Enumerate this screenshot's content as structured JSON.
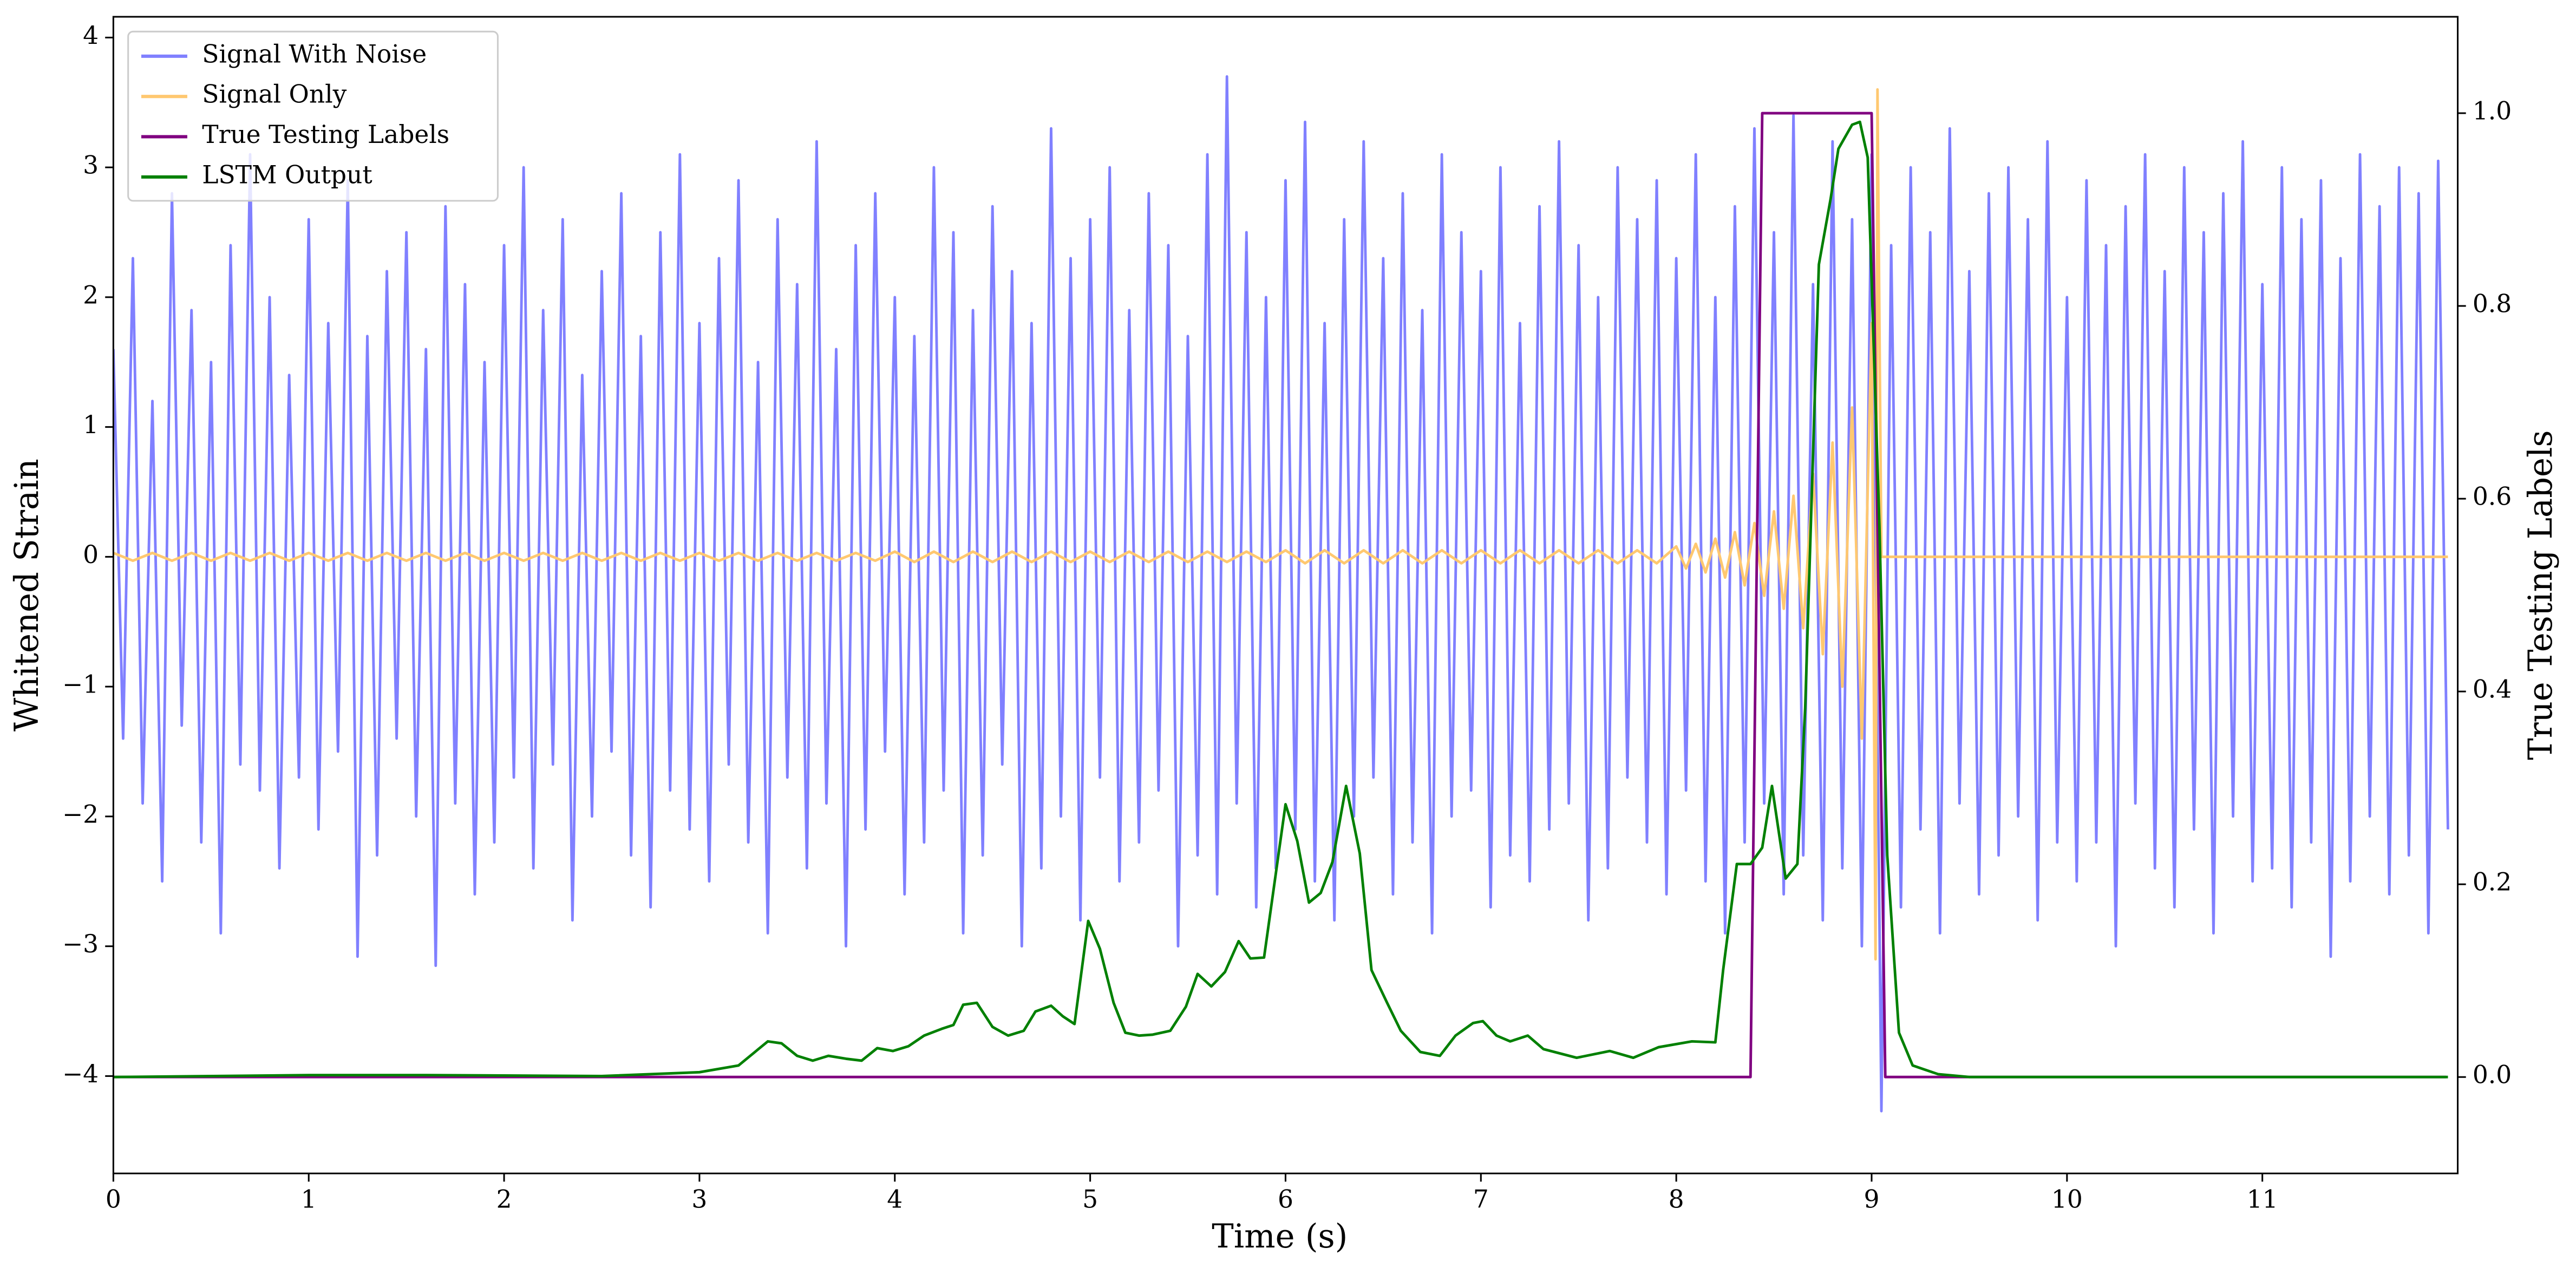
{
  "chart_data": {
    "type": "line",
    "xlabel": "Time (s)",
    "ylabel": "Whitened Strain",
    "y2label": "True Testing Labels",
    "legend": "upper left",
    "xlim": [
      0,
      12
    ],
    "ylim": [
      -4.75,
      4.16
    ],
    "y2lim": [
      -0.1,
      1.1
    ],
    "xticks": [
      0,
      1,
      2,
      3,
      4,
      5,
      6,
      7,
      8,
      9,
      10,
      11
    ],
    "yticks": [
      {
        "value": -4,
        "label": "−4"
      },
      {
        "value": -3,
        "label": "−3"
      },
      {
        "value": -2,
        "label": "−2"
      },
      {
        "value": -1,
        "label": "−1"
      },
      0,
      1,
      2,
      3,
      4
    ],
    "y2ticks": [
      {
        "value": 0,
        "label": "0.0"
      },
      0.2,
      0.4,
      0.6,
      0.8,
      {
        "value": 1,
        "label": "1.0"
      }
    ],
    "series": [
      {
        "name": "Signal With Noise",
        "color": "#8080ff",
        "axis": "y",
        "x": [
          0,
          0.05,
          0.1,
          0.15,
          0.2,
          0.25,
          0.3,
          0.35,
          0.4,
          0.45,
          0.5,
          0.55,
          0.6,
          0.65,
          0.7,
          0.75,
          0.8,
          0.85,
          0.9,
          0.95,
          1,
          1.05,
          1.1,
          1.15,
          1.2,
          1.25,
          1.3,
          1.35,
          1.4,
          1.45,
          1.5,
          1.55,
          1.6,
          1.65,
          1.7,
          1.75,
          1.8,
          1.85,
          1.9,
          1.95,
          2,
          2.05,
          2.1,
          2.15,
          2.2,
          2.25,
          2.3,
          2.35,
          2.4,
          2.45,
          2.5,
          2.55,
          2.6,
          2.65,
          2.7,
          2.75,
          2.8,
          2.85,
          2.9,
          2.95,
          3,
          3.05,
          3.1,
          3.15,
          3.2,
          3.25,
          3.3,
          3.35,
          3.4,
          3.45,
          3.5,
          3.55,
          3.6,
          3.65,
          3.7,
          3.75,
          3.8,
          3.85,
          3.9,
          3.95,
          4,
          4.05,
          4.1,
          4.15,
          4.2,
          4.25,
          4.3,
          4.35,
          4.4,
          4.45,
          4.5,
          4.55,
          4.6,
          4.65,
          4.7,
          4.75,
          4.8,
          4.85,
          4.9,
          4.95,
          5,
          5.05,
          5.1,
          5.15,
          5.2,
          5.25,
          5.3,
          5.35,
          5.4,
          5.45,
          5.5,
          5.55,
          5.6,
          5.65,
          5.7,
          5.75,
          5.8,
          5.85,
          5.9,
          5.95,
          6,
          6.05,
          6.1,
          6.15,
          6.2,
          6.25,
          6.3,
          6.35,
          6.4,
          6.45,
          6.5,
          6.55,
          6.6,
          6.65,
          6.7,
          6.75,
          6.8,
          6.85,
          6.9,
          6.95,
          7,
          7.05,
          7.1,
          7.15,
          7.2,
          7.25,
          7.3,
          7.35,
          7.4,
          7.45,
          7.5,
          7.55,
          7.6,
          7.65,
          7.7,
          7.75,
          7.8,
          7.85,
          7.9,
          7.95,
          8,
          8.05,
          8.1,
          8.15,
          8.2,
          8.25,
          8.3,
          8.35,
          8.4,
          8.45,
          8.5,
          8.55,
          8.6,
          8.65,
          8.7,
          8.75,
          8.8,
          8.85,
          8.9,
          8.95,
          9,
          9.05,
          9.1,
          9.15,
          9.2,
          9.25,
          9.3,
          9.35,
          9.4,
          9.45,
          9.5,
          9.55,
          9.6,
          9.65,
          9.7,
          9.75,
          9.8,
          9.85,
          9.9,
          9.95,
          10,
          10.05,
          10.1,
          10.15,
          10.2,
          10.25,
          10.3,
          10.35,
          10.4,
          10.45,
          10.5,
          10.55,
          10.6,
          10.65,
          10.7,
          10.75,
          10.8,
          10.85,
          10.9,
          10.95,
          11,
          11.05,
          11.1,
          11.15,
          11.2,
          11.25,
          11.3,
          11.35,
          11.4,
          11.45,
          11.5,
          11.55,
          11.6,
          11.65,
          11.7,
          11.75,
          11.8,
          11.85,
          11.9,
          11.95
        ],
        "values": [
          1.6,
          -1.4,
          2.3,
          -1.9,
          1.2,
          -2.5,
          2.8,
          -1.3,
          1.9,
          -2.2,
          1.5,
          -2.9,
          2.4,
          -1.6,
          3.1,
          -1.8,
          2.0,
          -2.4,
          1.4,
          -1.7,
          2.6,
          -2.1,
          1.8,
          -1.5,
          2.9,
          -3.08,
          1.7,
          -2.3,
          2.2,
          -1.4,
          2.5,
          -2.0,
          1.6,
          -3.15,
          2.7,
          -1.9,
          2.1,
          -2.6,
          1.5,
          -2.2,
          2.4,
          -1.7,
          3.0,
          -2.4,
          1.9,
          -1.6,
          2.6,
          -2.8,
          1.4,
          -2.0,
          2.2,
          -1.5,
          2.8,
          -2.3,
          1.7,
          -2.7,
          2.5,
          -1.8,
          3.1,
          -2.1,
          1.8,
          -2.5,
          2.3,
          -1.6,
          2.9,
          -2.2,
          1.5,
          -2.9,
          2.6,
          -1.7,
          2.1,
          -2.4,
          3.2,
          -1.9,
          1.6,
          -3.0,
          2.4,
          -2.1,
          2.8,
          -1.5,
          2.0,
          -2.6,
          1.7,
          -2.2,
          3.0,
          -1.8,
          2.5,
          -2.9,
          1.9,
          -2.3,
          2.7,
          -1.6,
          2.2,
          -3.0,
          1.8,
          -2.4,
          3.3,
          -2.0,
          2.3,
          -2.8,
          2.6,
          -1.7,
          3.0,
          -2.5,
          1.9,
          -2.2,
          2.8,
          -1.8,
          2.4,
          -3.0,
          1.7,
          -2.3,
          3.1,
          -2.6,
          3.7,
          -1.9,
          2.5,
          -2.7,
          2.0,
          -2.4,
          2.9,
          -2.1,
          3.35,
          -2.5,
          1.8,
          -2.8,
          2.6,
          -2.0,
          3.2,
          -1.7,
          2.3,
          -2.6,
          2.8,
          -2.2,
          1.9,
          -2.9,
          3.1,
          -2.0,
          2.5,
          -1.8,
          2.2,
          -2.7,
          3.0,
          -2.3,
          1.8,
          -2.5,
          2.7,
          -2.1,
          3.2,
          -1.9,
          2.4,
          -2.8,
          2.0,
          -2.4,
          3.0,
          -1.7,
          2.6,
          -2.2,
          2.9,
          -2.6,
          2.3,
          -1.8,
          3.1,
          -2.5,
          2.0,
          -2.9,
          2.7,
          -2.2,
          3.3,
          -1.9,
          2.5,
          -2.6,
          3.4,
          -2.3,
          2.1,
          -2.8,
          3.2,
          -2.4,
          2.6,
          -3.0,
          3.1,
          -4.27,
          2.4,
          -2.7,
          3.0,
          -2.1,
          2.5,
          -2.9,
          3.3,
          -1.9,
          2.2,
          -2.6,
          2.8,
          -2.3,
          3.0,
          -2.0,
          2.6,
          -2.8,
          3.2,
          -2.2,
          2.0,
          -2.5,
          2.9,
          -2.2,
          2.4,
          -3.0,
          2.7,
          -1.9,
          3.1,
          -2.4,
          2.2,
          -2.7,
          3.0,
          -2.1,
          2.5,
          -2.9,
          2.8,
          -2.0,
          3.2,
          -2.5,
          2.1,
          -2.4,
          3.0,
          -2.7,
          2.6,
          -2.2,
          2.9,
          -3.08,
          2.3,
          -2.5,
          3.1,
          -2.0,
          2.7,
          -2.6,
          3.0,
          -2.3,
          2.8,
          -2.9,
          3.05,
          -2.1
        ]
      },
      {
        "name": "Signal Only",
        "color": "#ffc870",
        "axis": "y",
        "x": [
          0,
          0.1,
          0.2,
          0.3,
          0.4,
          0.5,
          0.6,
          0.7,
          0.8,
          0.9,
          1,
          1.1,
          1.2,
          1.3,
          1.4,
          1.5,
          1.6,
          1.7,
          1.8,
          1.9,
          2,
          2.1,
          2.2,
          2.3,
          2.4,
          2.5,
          2.6,
          2.7,
          2.8,
          2.9,
          3,
          3.1,
          3.2,
          3.3,
          3.4,
          3.5,
          3.6,
          3.7,
          3.8,
          3.9,
          4,
          4.1,
          4.2,
          4.3,
          4.4,
          4.5,
          4.6,
          4.7,
          4.8,
          4.9,
          5,
          5.1,
          5.2,
          5.3,
          5.4,
          5.5,
          5.6,
          5.7,
          5.8,
          5.9,
          6,
          6.1,
          6.2,
          6.3,
          6.4,
          6.5,
          6.6,
          6.7,
          6.8,
          6.9,
          7,
          7.1,
          7.2,
          7.3,
          7.4,
          7.5,
          7.6,
          7.7,
          7.8,
          7.9,
          8,
          8.05,
          8.1,
          8.15,
          8.2,
          8.25,
          8.3,
          8.35,
          8.4,
          8.45,
          8.5,
          8.55,
          8.6,
          8.65,
          8.7,
          8.75,
          8.8,
          8.85,
          8.9,
          8.95,
          9,
          9.02,
          9.03,
          9.05,
          11.95
        ],
        "values": [
          0.03,
          -0.03,
          0.03,
          -0.03,
          0.03,
          -0.03,
          0.03,
          -0.03,
          0.03,
          -0.03,
          0.03,
          -0.03,
          0.03,
          -0.03,
          0.03,
          -0.03,
          0.03,
          -0.03,
          0.03,
          -0.03,
          0.03,
          -0.03,
          0.03,
          -0.03,
          0.03,
          -0.03,
          0.03,
          -0.03,
          0.03,
          -0.03,
          0.03,
          -0.03,
          0.03,
          -0.03,
          0.03,
          -0.03,
          0.03,
          -0.03,
          0.03,
          -0.03,
          0.04,
          -0.04,
          0.04,
          -0.04,
          0.04,
          -0.04,
          0.04,
          -0.04,
          0.04,
          -0.04,
          0.04,
          -0.04,
          0.04,
          -0.04,
          0.04,
          -0.04,
          0.04,
          -0.04,
          0.04,
          -0.04,
          0.05,
          -0.05,
          0.05,
          -0.05,
          0.05,
          -0.05,
          0.05,
          -0.05,
          0.05,
          -0.05,
          0.05,
          -0.05,
          0.05,
          -0.05,
          0.05,
          -0.05,
          0.05,
          -0.05,
          0.05,
          -0.05,
          0.08,
          -0.09,
          0.1,
          -0.12,
          0.14,
          -0.16,
          0.19,
          -0.22,
          0.26,
          -0.3,
          0.35,
          -0.4,
          0.47,
          -0.55,
          0.64,
          -0.75,
          0.88,
          -1.0,
          1.15,
          -1.4,
          1.8,
          -3.1,
          3.6,
          0,
          0
        ]
      },
      {
        "name": "True Testing Labels",
        "color": "#800080",
        "axis": "y2",
        "x": [
          0,
          8.38,
          8.44,
          9.0,
          9.07,
          11.94
        ],
        "values": [
          0,
          0,
          1,
          1,
          0,
          0
        ]
      },
      {
        "name": "LSTM Output",
        "color": "#008000",
        "axis": "y2",
        "x": [
          0,
          1.0,
          1.6,
          2.5,
          3.0,
          3.2,
          3.35,
          3.42,
          3.5,
          3.58,
          3.66,
          3.75,
          3.83,
          3.91,
          3.99,
          4.07,
          4.15,
          4.24,
          4.3,
          4.35,
          4.42,
          4.5,
          4.58,
          4.66,
          4.72,
          4.8,
          4.86,
          4.92,
          4.99,
          5.05,
          5.12,
          5.18,
          5.25,
          5.32,
          5.41,
          5.49,
          5.55,
          5.62,
          5.69,
          5.76,
          5.82,
          5.89,
          6.0,
          6.06,
          6.12,
          6.18,
          6.24,
          6.31,
          6.38,
          6.44,
          6.52,
          6.59,
          6.69,
          6.79,
          6.87,
          6.96,
          7.01,
          7.08,
          7.15,
          7.24,
          7.32,
          7.49,
          7.66,
          7.78,
          7.91,
          8.08,
          8.2,
          8.24,
          8.31,
          8.38,
          8.44,
          8.49,
          8.56,
          8.62,
          8.66,
          8.73,
          8.79,
          8.83,
          8.9,
          8.94,
          8.98,
          9.04,
          9.08,
          9.14,
          9.21,
          9.34,
          9.5,
          11.95
        ],
        "values": [
          0,
          0.002,
          0.002,
          0.001,
          0.005,
          0.012,
          0.037,
          0.035,
          0.022,
          0.017,
          0.022,
          0.019,
          0.017,
          0.03,
          0.027,
          0.032,
          0.043,
          0.05,
          0.054,
          0.075,
          0.077,
          0.052,
          0.043,
          0.048,
          0.068,
          0.074,
          0.063,
          0.055,
          0.162,
          0.133,
          0.077,
          0.046,
          0.043,
          0.044,
          0.048,
          0.073,
          0.107,
          0.094,
          0.109,
          0.141,
          0.123,
          0.124,
          0.283,
          0.245,
          0.181,
          0.191,
          0.223,
          0.302,
          0.232,
          0.111,
          0.077,
          0.048,
          0.026,
          0.022,
          0.043,
          0.056,
          0.058,
          0.043,
          0.037,
          0.043,
          0.029,
          0.02,
          0.027,
          0.02,
          0.031,
          0.037,
          0.036,
          0.111,
          0.221,
          0.221,
          0.238,
          0.302,
          0.206,
          0.221,
          0.383,
          0.843,
          0.911,
          0.963,
          0.988,
          0.991,
          0.954,
          0.571,
          0.23,
          0.046,
          0.012,
          0.003,
          0,
          0
        ]
      }
    ]
  }
}
